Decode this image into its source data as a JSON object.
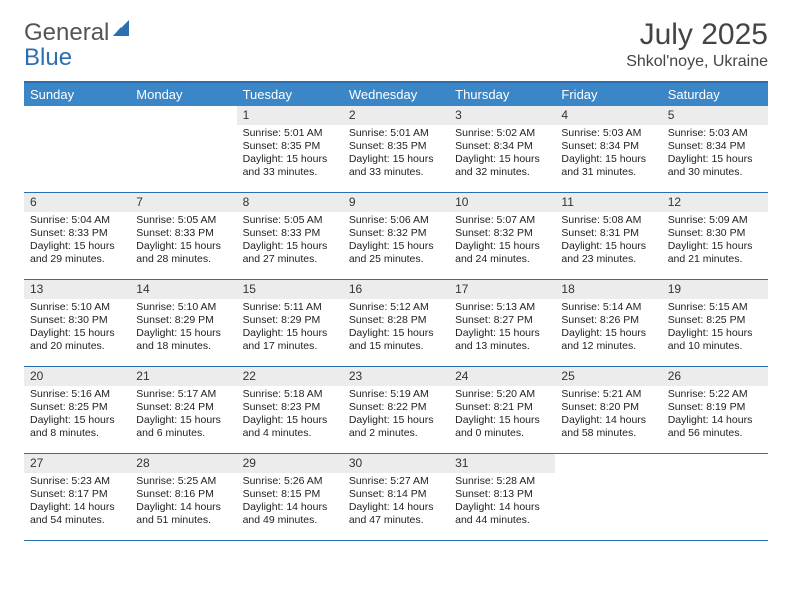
{
  "logo": {
    "text1": "General",
    "text2": "Blue"
  },
  "title": "July 2025",
  "location": "Shkol'noye, Ukraine",
  "colors": {
    "header_bg": "#3b86c7",
    "header_border": "#2c6fb0",
    "daynum_bg": "#ececec",
    "text": "#222222",
    "title_text": "#444444"
  },
  "weekdays": [
    "Sunday",
    "Monday",
    "Tuesday",
    "Wednesday",
    "Thursday",
    "Friday",
    "Saturday"
  ],
  "weeks": [
    [
      {
        "empty": true
      },
      {
        "empty": true
      },
      {
        "day": "1",
        "sunrise": "Sunrise: 5:01 AM",
        "sunset": "Sunset: 8:35 PM",
        "daylight": "Daylight: 15 hours and 33 minutes."
      },
      {
        "day": "2",
        "sunrise": "Sunrise: 5:01 AM",
        "sunset": "Sunset: 8:35 PM",
        "daylight": "Daylight: 15 hours and 33 minutes."
      },
      {
        "day": "3",
        "sunrise": "Sunrise: 5:02 AM",
        "sunset": "Sunset: 8:34 PM",
        "daylight": "Daylight: 15 hours and 32 minutes."
      },
      {
        "day": "4",
        "sunrise": "Sunrise: 5:03 AM",
        "sunset": "Sunset: 8:34 PM",
        "daylight": "Daylight: 15 hours and 31 minutes."
      },
      {
        "day": "5",
        "sunrise": "Sunrise: 5:03 AM",
        "sunset": "Sunset: 8:34 PM",
        "daylight": "Daylight: 15 hours and 30 minutes."
      }
    ],
    [
      {
        "day": "6",
        "sunrise": "Sunrise: 5:04 AM",
        "sunset": "Sunset: 8:33 PM",
        "daylight": "Daylight: 15 hours and 29 minutes."
      },
      {
        "day": "7",
        "sunrise": "Sunrise: 5:05 AM",
        "sunset": "Sunset: 8:33 PM",
        "daylight": "Daylight: 15 hours and 28 minutes."
      },
      {
        "day": "8",
        "sunrise": "Sunrise: 5:05 AM",
        "sunset": "Sunset: 8:33 PM",
        "daylight": "Daylight: 15 hours and 27 minutes."
      },
      {
        "day": "9",
        "sunrise": "Sunrise: 5:06 AM",
        "sunset": "Sunset: 8:32 PM",
        "daylight": "Daylight: 15 hours and 25 minutes."
      },
      {
        "day": "10",
        "sunrise": "Sunrise: 5:07 AM",
        "sunset": "Sunset: 8:32 PM",
        "daylight": "Daylight: 15 hours and 24 minutes."
      },
      {
        "day": "11",
        "sunrise": "Sunrise: 5:08 AM",
        "sunset": "Sunset: 8:31 PM",
        "daylight": "Daylight: 15 hours and 23 minutes."
      },
      {
        "day": "12",
        "sunrise": "Sunrise: 5:09 AM",
        "sunset": "Sunset: 8:30 PM",
        "daylight": "Daylight: 15 hours and 21 minutes."
      }
    ],
    [
      {
        "day": "13",
        "sunrise": "Sunrise: 5:10 AM",
        "sunset": "Sunset: 8:30 PM",
        "daylight": "Daylight: 15 hours and 20 minutes."
      },
      {
        "day": "14",
        "sunrise": "Sunrise: 5:10 AM",
        "sunset": "Sunset: 8:29 PM",
        "daylight": "Daylight: 15 hours and 18 minutes."
      },
      {
        "day": "15",
        "sunrise": "Sunrise: 5:11 AM",
        "sunset": "Sunset: 8:29 PM",
        "daylight": "Daylight: 15 hours and 17 minutes."
      },
      {
        "day": "16",
        "sunrise": "Sunrise: 5:12 AM",
        "sunset": "Sunset: 8:28 PM",
        "daylight": "Daylight: 15 hours and 15 minutes."
      },
      {
        "day": "17",
        "sunrise": "Sunrise: 5:13 AM",
        "sunset": "Sunset: 8:27 PM",
        "daylight": "Daylight: 15 hours and 13 minutes."
      },
      {
        "day": "18",
        "sunrise": "Sunrise: 5:14 AM",
        "sunset": "Sunset: 8:26 PM",
        "daylight": "Daylight: 15 hours and 12 minutes."
      },
      {
        "day": "19",
        "sunrise": "Sunrise: 5:15 AM",
        "sunset": "Sunset: 8:25 PM",
        "daylight": "Daylight: 15 hours and 10 minutes."
      }
    ],
    [
      {
        "day": "20",
        "sunrise": "Sunrise: 5:16 AM",
        "sunset": "Sunset: 8:25 PM",
        "daylight": "Daylight: 15 hours and 8 minutes."
      },
      {
        "day": "21",
        "sunrise": "Sunrise: 5:17 AM",
        "sunset": "Sunset: 8:24 PM",
        "daylight": "Daylight: 15 hours and 6 minutes."
      },
      {
        "day": "22",
        "sunrise": "Sunrise: 5:18 AM",
        "sunset": "Sunset: 8:23 PM",
        "daylight": "Daylight: 15 hours and 4 minutes."
      },
      {
        "day": "23",
        "sunrise": "Sunrise: 5:19 AM",
        "sunset": "Sunset: 8:22 PM",
        "daylight": "Daylight: 15 hours and 2 minutes."
      },
      {
        "day": "24",
        "sunrise": "Sunrise: 5:20 AM",
        "sunset": "Sunset: 8:21 PM",
        "daylight": "Daylight: 15 hours and 0 minutes."
      },
      {
        "day": "25",
        "sunrise": "Sunrise: 5:21 AM",
        "sunset": "Sunset: 8:20 PM",
        "daylight": "Daylight: 14 hours and 58 minutes."
      },
      {
        "day": "26",
        "sunrise": "Sunrise: 5:22 AM",
        "sunset": "Sunset: 8:19 PM",
        "daylight": "Daylight: 14 hours and 56 minutes."
      }
    ],
    [
      {
        "day": "27",
        "sunrise": "Sunrise: 5:23 AM",
        "sunset": "Sunset: 8:17 PM",
        "daylight": "Daylight: 14 hours and 54 minutes."
      },
      {
        "day": "28",
        "sunrise": "Sunrise: 5:25 AM",
        "sunset": "Sunset: 8:16 PM",
        "daylight": "Daylight: 14 hours and 51 minutes."
      },
      {
        "day": "29",
        "sunrise": "Sunrise: 5:26 AM",
        "sunset": "Sunset: 8:15 PM",
        "daylight": "Daylight: 14 hours and 49 minutes."
      },
      {
        "day": "30",
        "sunrise": "Sunrise: 5:27 AM",
        "sunset": "Sunset: 8:14 PM",
        "daylight": "Daylight: 14 hours and 47 minutes."
      },
      {
        "day": "31",
        "sunrise": "Sunrise: 5:28 AM",
        "sunset": "Sunset: 8:13 PM",
        "daylight": "Daylight: 14 hours and 44 minutes."
      },
      {
        "empty": true
      },
      {
        "empty": true
      }
    ]
  ]
}
